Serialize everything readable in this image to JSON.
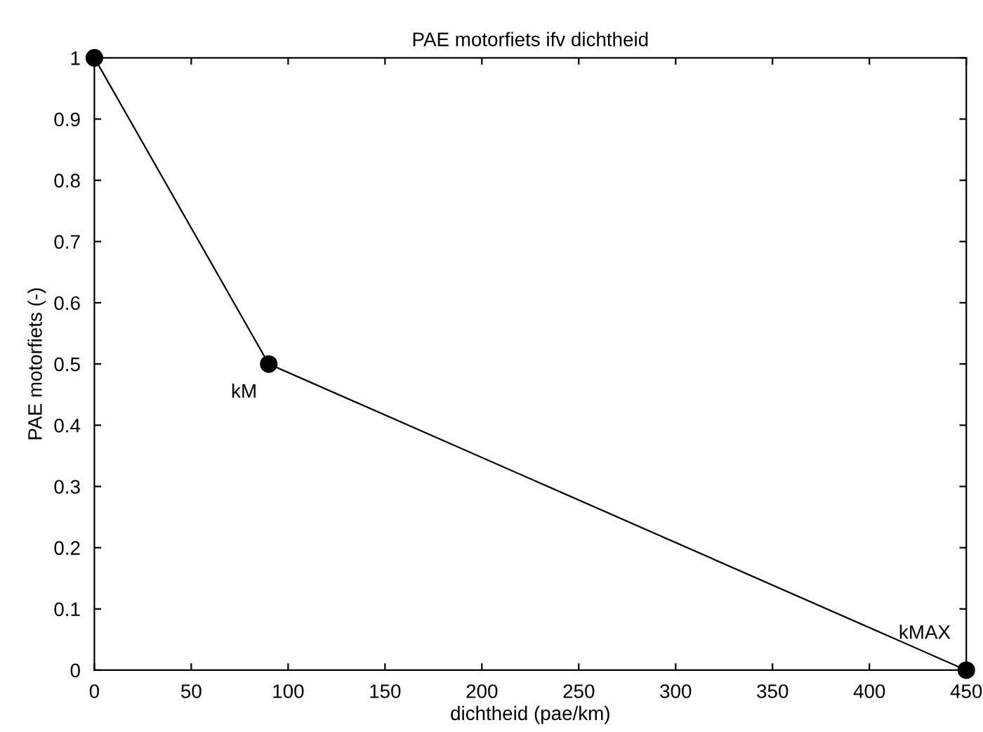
{
  "chart_data": {
    "type": "line",
    "title": "PAE motorfiets ifv dichtheid",
    "xlabel": "dichtheid (pae/km)",
    "ylabel": "PAE motorfiets (-)",
    "x": [
      0,
      90,
      450
    ],
    "series": [
      {
        "color": "#000000",
        "values": [
          1,
          0.5,
          0
        ]
      }
    ],
    "marker": "circle",
    "line_style": "solid",
    "grid": false,
    "legend": false,
    "xlim": [
      0,
      450
    ],
    "xticks": [
      0,
      50,
      100,
      150,
      200,
      250,
      300,
      350,
      400,
      450
    ],
    "ylim": [
      0,
      1
    ],
    "yticks": [
      0,
      0.1,
      0.2,
      0.3,
      0.4,
      0.5,
      0.6,
      0.7,
      0.8,
      0.9,
      1
    ],
    "annotations": [
      {
        "text": "kM",
        "x": 90,
        "y": 0.5
      },
      {
        "text": "kMAX",
        "x": 450,
        "y": 0
      }
    ]
  }
}
